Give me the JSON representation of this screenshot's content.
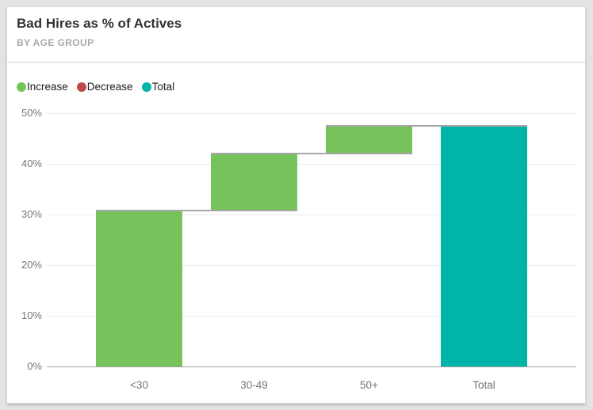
{
  "card": {
    "title": "Bad Hires as % of Actives",
    "subtitle": "BY AGE GROUP"
  },
  "legend": {
    "position": "top-left",
    "items": [
      {
        "label": "Increase",
        "color": "#76c35c"
      },
      {
        "label": "Decrease",
        "color": "#be4a47"
      },
      {
        "label": "Total",
        "color": "#00b5a7"
      }
    ]
  },
  "chart_data": {
    "type": "bar",
    "subtype": "waterfall",
    "title": "Bad Hires as % of Actives",
    "subtitle": "BY AGE GROUP",
    "xlabel": "",
    "ylabel": "",
    "categories": [
      "<30",
      "30-49",
      "50+",
      "Total"
    ],
    "bars": [
      {
        "category": "<30",
        "kind": "increase",
        "start": 0,
        "end": 31.0,
        "value": 31.0
      },
      {
        "category": "30-49",
        "kind": "increase",
        "start": 31.0,
        "end": 42.3,
        "value": 11.3
      },
      {
        "category": "50+",
        "kind": "increase",
        "start": 42.3,
        "end": 47.7,
        "value": 5.4
      },
      {
        "category": "Total",
        "kind": "total",
        "start": 0,
        "end": 47.7,
        "value": 47.7
      }
    ],
    "colors": {
      "increase": "#76c35c",
      "decrease": "#be4a47",
      "total": "#00b5a7",
      "connector": "#a6a6a6",
      "gridline": "#ececec",
      "axis_line": "#a0a0a0",
      "tick_text": "#777777"
    },
    "y_ticks": [
      {
        "value": 0,
        "label": "0%"
      },
      {
        "value": 10,
        "label": "10%"
      },
      {
        "value": 20,
        "label": "20%"
      },
      {
        "value": 30,
        "label": "30%"
      },
      {
        "value": 40,
        "label": "40%"
      },
      {
        "value": 50,
        "label": "50%"
      }
    ],
    "ylim": [
      0,
      51
    ],
    "grid": true,
    "legend_position": "top-left"
  }
}
